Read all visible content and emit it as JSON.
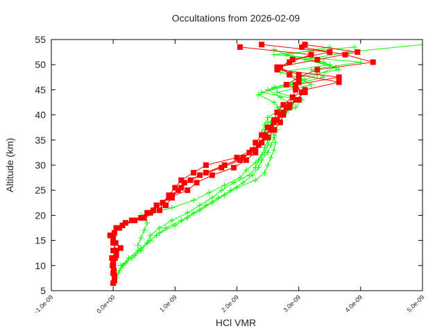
{
  "chart_data": {
    "type": "line",
    "title": "Occultations from 2026-02-09",
    "xlabel": "HCl VMR",
    "ylabel": "Altitude (km)",
    "xlim": [
      -1e-09,
      5e-09
    ],
    "ylim": [
      5,
      55
    ],
    "x_tick_labels": [
      "-1.0e-09",
      "0.0e+00",
      "1.0e-09",
      "2.0e-09",
      "3.0e-09",
      "4.0e-09",
      "5.0e-09"
    ],
    "x_ticks": [
      -1e-09,
      0.0,
      1e-09,
      2e-09,
      3e-09,
      4e-09,
      5e-09
    ],
    "y_tick_labels": [
      "5",
      "10",
      "15",
      "20",
      "25",
      "30",
      "35",
      "40",
      "45",
      "50",
      "55"
    ],
    "y_ticks": [
      5,
      10,
      15,
      20,
      25,
      30,
      35,
      40,
      45,
      50,
      55
    ],
    "grid": false,
    "legend": null,
    "series": [
      {
        "name": "red-profiles",
        "color": "#ff0000",
        "marker": "square",
        "profiles": [
          {
            "alt": [
              6.5,
              8,
              10,
              11.5,
              13,
              14.5,
              16,
              17.5,
              18.5,
              19.5,
              21,
              22.5,
              24,
              25.5,
              27,
              28.5,
              30,
              31.5,
              33,
              34.5,
              36,
              37.5,
              39,
              40.5,
              42,
              43.5,
              45,
              46.5,
              48,
              49.5,
              51,
              52.5,
              54
            ],
            "vmr": [
              0.0,
              2e-11,
              0.0,
              -2e-11,
              5e-11,
              0.0,
              -5e-11,
              5e-11,
              2e-10,
              5e-10,
              7.5e-10,
              8e-10,
              9e-10,
              1e-09,
              1.1e-09,
              1.3e-09,
              1.5e-09,
              2e-09,
              2.25e-09,
              2.3e-09,
              2.4e-09,
              2.5e-09,
              2.6e-09,
              2.65e-09,
              2.75e-09,
              2.9e-09,
              2.95e-09,
              3e-09,
              2.85e-09,
              2.7e-09,
              2.9e-09,
              3.5e-09,
              2.4e-09
            ]
          },
          {
            "alt": [
              7,
              8.5,
              10,
              11.5,
              13,
              14.5,
              16,
              17.5,
              19,
              20.5,
              22,
              23.5,
              25,
              26.5,
              28,
              29.5,
              31,
              32.5,
              34,
              35.5,
              37,
              38.5,
              40,
              41.5,
              43,
              44.5,
              46,
              47.5,
              49,
              50.5,
              52,
              53.5
            ],
            "vmr": [
              2e-11,
              0.0,
              -1e-11,
              3e-11,
              0.0,
              4e-11,
              0.0,
              1e-10,
              3e-10,
              6e-10,
              8.5e-10,
              9.5e-10,
              1.05e-09,
              1.15e-09,
              1.4e-09,
              1.75e-09,
              2.05e-09,
              2.2e-09,
              2.35e-09,
              2.45e-09,
              2.55e-09,
              2.6e-09,
              2.7e-09,
              2.8e-09,
              3e-09,
              3.05e-09,
              2.95e-09,
              3.65e-09,
              2.65e-09,
              2.85e-09,
              3.2e-09,
              2.05e-09
            ]
          },
          {
            "alt": [
              9,
              10.5,
              12,
              13.5,
              15,
              16.5,
              18,
              19.5,
              21,
              22.5,
              24,
              25.5,
              27,
              28.5,
              30,
              31.5,
              33,
              34.5,
              36,
              37.5,
              39,
              40.5,
              42,
              43.5,
              45,
              46.5,
              48,
              49.5,
              51,
              52.5,
              54
            ],
            "vmr": [
              1e-11,
              0.0,
              5e-11,
              1.2e-10,
              0.0,
              2e-11,
              1.5e-10,
              4.5e-10,
              6.5e-10,
              8e-10,
              9.5e-10,
              1.1e-09,
              1.25e-09,
              1.5e-09,
              1.8e-09,
              2.1e-09,
              2.3e-09,
              2.4e-09,
              2.45e-09,
              2.55e-09,
              2.65e-09,
              2.75e-09,
              2.85e-09,
              2.9e-09,
              3.1e-09,
              3.65e-09,
              3e-09,
              2.65e-09,
              3.3e-09,
              3.95e-09,
              3.1e-09
            ]
          },
          {
            "alt": [
              16,
              17.5,
              19,
              20.5,
              22,
              23.5,
              25,
              26.5,
              28,
              29.5,
              31,
              32.5,
              34,
              35.5,
              37,
              38.5,
              40,
              41.5,
              43,
              44.5,
              46,
              47.5,
              49,
              50.5,
              52,
              53.5
            ],
            "vmr": [
              -3e-11,
              8e-11,
              3.5e-10,
              5.5e-10,
              7e-10,
              9e-10,
              1.2e-09,
              1.35e-09,
              1.6e-09,
              1.95e-09,
              2.15e-09,
              2.3e-09,
              2.35e-09,
              2.5e-09,
              2.6e-09,
              2.7e-09,
              2.75e-09,
              2.85e-09,
              2.95e-09,
              3.1e-09,
              2.8e-09,
              3e-09,
              3.3e-09,
              4.2e-09,
              3.75e-09,
              3.05e-09
            ]
          }
        ]
      },
      {
        "name": "green-profiles",
        "color": "#00ff00",
        "marker": "plus",
        "profiles": [
          {
            "alt": [
              7.5,
              9,
              10.5,
              12,
              13.5,
              15,
              16.5,
              18,
              19.5,
              21,
              22.5,
              24,
              25.5,
              27,
              28.5,
              30,
              31.5,
              33,
              34.5,
              36,
              37.5,
              39,
              40.5,
              42,
              43.5,
              45,
              46.5,
              48,
              49.5,
              51,
              52.5,
              54
            ],
            "vmr": [
              5e-11,
              1e-10,
              2e-10,
              3.5e-10,
              4.5e-10,
              6e-10,
              7.5e-10,
              1e-09,
              1.2e-09,
              1.4e-09,
              1.6e-09,
              1.8e-09,
              2e-09,
              2.3e-09,
              2.45e-09,
              2.5e-09,
              2.55e-09,
              2.6e-09,
              2.62e-09,
              2.6e-09,
              2.55e-09,
              2.6e-09,
              2.8e-09,
              2.9e-09,
              2.7e-09,
              2.5e-09,
              3e-09,
              3.3e-09,
              3.6e-09,
              3.1e-09,
              3.8e-09,
              5e-09
            ]
          },
          {
            "alt": [
              8.5,
              10,
              11.5,
              13,
              14.5,
              16,
              17.5,
              19,
              20.5,
              22,
              23.5,
              25,
              26.5,
              28,
              29.5,
              31,
              32.5,
              34,
              35.5,
              37,
              38.5,
              40,
              41.5,
              43,
              44.5,
              46,
              47.5,
              49,
              50.5,
              52,
              53.5
            ],
            "vmr": [
              8e-11,
              1.5e-10,
              2.5e-10,
              4e-10,
              5.5e-10,
              7e-10,
              8.5e-10,
              1.1e-09,
              1.3e-09,
              1.5e-09,
              1.7e-09,
              1.9e-09,
              2.1e-09,
              2.25e-09,
              2.35e-09,
              2.4e-09,
              2.5e-09,
              2.55e-09,
              2.6e-09,
              2.65e-09,
              2.55e-09,
              2.7e-09,
              2.95e-09,
              3.05e-09,
              2.65e-09,
              3.2e-09,
              3e-09,
              3.65e-09,
              3.4e-09,
              2.8e-09,
              3.5e-09
            ]
          },
          {
            "alt": [
              10,
              11.5,
              13,
              14.5,
              16,
              17.5,
              19,
              20.5,
              22,
              23.5,
              25,
              26.5,
              28,
              29.5,
              31,
              32.5,
              34,
              35.5,
              37,
              38.5,
              40,
              41.5,
              43,
              44.5,
              46,
              47.5,
              49,
              50.5,
              52,
              53.5
            ],
            "vmr": [
              1.2e-10,
              3e-10,
              4.5e-10,
              5.5e-10,
              6e-10,
              7.5e-10,
              9.5e-10,
              1.2e-09,
              1.4e-09,
              1.6e-09,
              1.75e-09,
              1.95e-09,
              2.2e-09,
              2.3e-09,
              2.35e-09,
              2.45e-09,
              2.5e-09,
              2.55e-09,
              2.45e-09,
              2.5e-09,
              2.75e-09,
              2.65e-09,
              3e-09,
              2.4e-09,
              2.9e-09,
              3.4e-09,
              3.2e-09,
              4e-09,
              2.6e-09,
              3.9e-09
            ]
          },
          {
            "alt": [
              14,
              15.5,
              17,
              18.5,
              20,
              21.5,
              23,
              24.5,
              26,
              27.5,
              29,
              30.5,
              32,
              33.5,
              35,
              36.5,
              38,
              39.5,
              41,
              42.5,
              44,
              45.5,
              47,
              48.5,
              50,
              51.5,
              53
            ],
            "vmr": [
              4e-10,
              4.5e-10,
              5e-10,
              5.5e-10,
              4.5e-10,
              9.5e-10,
              1.3e-09,
              1.55e-09,
              1.8e-09,
              2.05e-09,
              2.15e-09,
              2.3e-09,
              2.4e-09,
              2.45e-09,
              2.5e-09,
              2.4e-09,
              2.45e-09,
              2.5e-09,
              2.7e-09,
              2.6e-09,
              2.35e-09,
              2.6e-09,
              3.1e-09,
              2.7e-09,
              3.5e-09,
              2.9e-09,
              2.6e-09
            ]
          }
        ]
      }
    ]
  }
}
